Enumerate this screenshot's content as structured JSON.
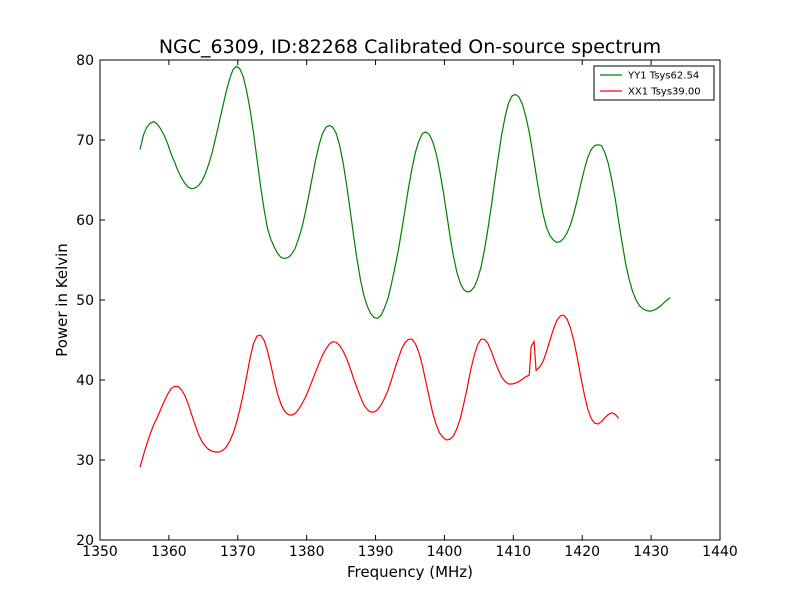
{
  "chart_data": {
    "type": "line",
    "title": "NGC_6309, ID:82268 Calibrated On-source spectrum",
    "xlabel": "Frequency (MHz)",
    "ylabel": "Power in Kelvin",
    "xlim": [
      1350,
      1440
    ],
    "ylim": [
      20,
      80
    ],
    "xticks": [
      1350,
      1360,
      1370,
      1380,
      1390,
      1400,
      1410,
      1420,
      1430,
      1440
    ],
    "yticks": [
      20,
      30,
      40,
      50,
      60,
      70,
      80
    ],
    "grid": false,
    "legend_position": "top-right",
    "series": [
      {
        "name": "YY1 Tsys62.54",
        "color": "#008000",
        "points": [
          [
            1355.8,
            68.8
          ],
          [
            1356.3,
            70.6
          ],
          [
            1356.8,
            71.6
          ],
          [
            1357.3,
            72.1
          ],
          [
            1357.8,
            72.3
          ],
          [
            1358.3,
            72.0
          ],
          [
            1358.8,
            71.4
          ],
          [
            1359.3,
            70.6
          ],
          [
            1359.8,
            69.6
          ],
          [
            1360.3,
            68.3
          ],
          [
            1360.8,
            67.3
          ],
          [
            1361.3,
            66.2
          ],
          [
            1361.8,
            65.3
          ],
          [
            1362.3,
            64.6
          ],
          [
            1362.8,
            64.1
          ],
          [
            1363.3,
            63.9
          ],
          [
            1363.8,
            64.0
          ],
          [
            1364.3,
            64.3
          ],
          [
            1364.8,
            64.9
          ],
          [
            1365.3,
            65.8
          ],
          [
            1365.8,
            67.0
          ],
          [
            1366.3,
            68.5
          ],
          [
            1366.8,
            70.3
          ],
          [
            1367.3,
            72.2
          ],
          [
            1367.8,
            74.1
          ],
          [
            1368.3,
            76.0
          ],
          [
            1368.8,
            77.6
          ],
          [
            1369.3,
            78.8
          ],
          [
            1369.8,
            79.2
          ],
          [
            1370.3,
            78.9
          ],
          [
            1370.8,
            77.9
          ],
          [
            1371.3,
            76.1
          ],
          [
            1371.8,
            73.7
          ],
          [
            1372.3,
            70.8
          ],
          [
            1372.8,
            67.5
          ],
          [
            1373.3,
            64.3
          ],
          [
            1373.8,
            61.4
          ],
          [
            1374.3,
            59.0
          ],
          [
            1374.8,
            57.6
          ],
          [
            1375.3,
            56.6
          ],
          [
            1375.8,
            55.8
          ],
          [
            1376.3,
            55.3
          ],
          [
            1376.8,
            55.2
          ],
          [
            1377.3,
            55.3
          ],
          [
            1377.8,
            55.7
          ],
          [
            1378.3,
            56.4
          ],
          [
            1378.8,
            57.6
          ],
          [
            1379.3,
            59.0
          ],
          [
            1379.8,
            60.9
          ],
          [
            1380.3,
            63.0
          ],
          [
            1380.8,
            65.3
          ],
          [
            1381.3,
            67.5
          ],
          [
            1381.8,
            69.4
          ],
          [
            1382.3,
            70.8
          ],
          [
            1382.8,
            71.6
          ],
          [
            1383.3,
            71.8
          ],
          [
            1383.8,
            71.6
          ],
          [
            1384.3,
            70.8
          ],
          [
            1384.8,
            69.3
          ],
          [
            1385.3,
            67.1
          ],
          [
            1385.8,
            64.4
          ],
          [
            1386.3,
            61.3
          ],
          [
            1386.8,
            58.1
          ],
          [
            1387.3,
            55.1
          ],
          [
            1387.8,
            52.6
          ],
          [
            1388.3,
            50.6
          ],
          [
            1388.8,
            49.2
          ],
          [
            1389.3,
            48.3
          ],
          [
            1389.8,
            47.8
          ],
          [
            1390.3,
            47.7
          ],
          [
            1390.8,
            48.1
          ],
          [
            1391.3,
            49.0
          ],
          [
            1391.8,
            50.2
          ],
          [
            1392.3,
            52.0
          ],
          [
            1392.8,
            54.0
          ],
          [
            1393.3,
            56.2
          ],
          [
            1393.8,
            58.7
          ],
          [
            1394.3,
            61.4
          ],
          [
            1394.8,
            64.1
          ],
          [
            1395.3,
            66.5
          ],
          [
            1395.8,
            68.5
          ],
          [
            1396.3,
            69.9
          ],
          [
            1396.8,
            70.8
          ],
          [
            1397.3,
            71.0
          ],
          [
            1397.8,
            70.7
          ],
          [
            1398.3,
            69.8
          ],
          [
            1398.8,
            68.3
          ],
          [
            1399.3,
            66.2
          ],
          [
            1399.8,
            63.7
          ],
          [
            1400.3,
            60.9
          ],
          [
            1400.8,
            58.0
          ],
          [
            1401.3,
            55.5
          ],
          [
            1401.8,
            53.5
          ],
          [
            1402.3,
            52.1
          ],
          [
            1402.8,
            51.3
          ],
          [
            1403.3,
            51.0
          ],
          [
            1403.8,
            51.1
          ],
          [
            1404.3,
            51.6
          ],
          [
            1404.8,
            52.6
          ],
          [
            1405.3,
            54.1
          ],
          [
            1405.8,
            56.2
          ],
          [
            1406.3,
            58.8
          ],
          [
            1406.8,
            61.7
          ],
          [
            1407.3,
            64.8
          ],
          [
            1407.8,
            67.8
          ],
          [
            1408.3,
            70.6
          ],
          [
            1408.8,
            72.9
          ],
          [
            1409.3,
            74.6
          ],
          [
            1409.8,
            75.5
          ],
          [
            1410.3,
            75.7
          ],
          [
            1410.8,
            75.4
          ],
          [
            1411.3,
            74.5
          ],
          [
            1411.8,
            73.0
          ],
          [
            1412.3,
            71.0
          ],
          [
            1412.8,
            68.5
          ],
          [
            1413.3,
            65.7
          ],
          [
            1413.8,
            63.1
          ],
          [
            1414.3,
            60.8
          ],
          [
            1414.8,
            59.1
          ],
          [
            1415.3,
            58.1
          ],
          [
            1415.8,
            57.5
          ],
          [
            1416.3,
            57.2
          ],
          [
            1416.8,
            57.3
          ],
          [
            1417.3,
            57.7
          ],
          [
            1417.8,
            58.4
          ],
          [
            1418.3,
            59.4
          ],
          [
            1418.8,
            60.9
          ],
          [
            1419.3,
            62.6
          ],
          [
            1419.8,
            64.5
          ],
          [
            1420.3,
            66.3
          ],
          [
            1420.8,
            67.8
          ],
          [
            1421.3,
            68.8
          ],
          [
            1421.8,
            69.3
          ],
          [
            1422.3,
            69.4
          ],
          [
            1422.8,
            69.3
          ],
          [
            1423.3,
            68.4
          ],
          [
            1423.8,
            67.0
          ],
          [
            1424.3,
            65.0
          ],
          [
            1424.8,
            62.6
          ],
          [
            1425.3,
            59.8
          ],
          [
            1425.8,
            57.1
          ],
          [
            1426.3,
            54.6
          ],
          [
            1426.8,
            52.6
          ],
          [
            1427.3,
            51.1
          ],
          [
            1427.8,
            50.0
          ],
          [
            1428.3,
            49.3
          ],
          [
            1428.8,
            48.9
          ],
          [
            1429.3,
            48.7
          ],
          [
            1429.8,
            48.6
          ],
          [
            1430.3,
            48.7
          ],
          [
            1430.8,
            48.9
          ],
          [
            1431.3,
            49.2
          ],
          [
            1431.8,
            49.6
          ],
          [
            1432.3,
            50.0
          ],
          [
            1432.8,
            50.3
          ]
        ]
      },
      {
        "name": "XX1 Tsys39.00",
        "color": "#ff0000",
        "points": [
          [
            1355.8,
            29.1
          ],
          [
            1356.3,
            30.6
          ],
          [
            1356.8,
            32.0
          ],
          [
            1357.3,
            33.3
          ],
          [
            1357.8,
            34.4
          ],
          [
            1358.3,
            35.3
          ],
          [
            1358.8,
            36.3
          ],
          [
            1359.3,
            37.3
          ],
          [
            1359.8,
            38.2
          ],
          [
            1360.3,
            38.9
          ],
          [
            1360.8,
            39.2
          ],
          [
            1361.3,
            39.2
          ],
          [
            1361.8,
            38.8
          ],
          [
            1362.3,
            38.1
          ],
          [
            1362.8,
            37.0
          ],
          [
            1363.3,
            35.7
          ],
          [
            1363.8,
            34.4
          ],
          [
            1364.3,
            33.2
          ],
          [
            1364.8,
            32.3
          ],
          [
            1365.3,
            31.7
          ],
          [
            1365.8,
            31.3
          ],
          [
            1366.3,
            31.1
          ],
          [
            1366.8,
            31.0
          ],
          [
            1367.3,
            31.0
          ],
          [
            1367.8,
            31.2
          ],
          [
            1368.3,
            31.6
          ],
          [
            1368.8,
            32.3
          ],
          [
            1369.3,
            33.3
          ],
          [
            1369.8,
            34.6
          ],
          [
            1370.3,
            36.3
          ],
          [
            1370.8,
            38.3
          ],
          [
            1371.3,
            40.5
          ],
          [
            1371.8,
            42.8
          ],
          [
            1372.3,
            44.6
          ],
          [
            1372.8,
            45.5
          ],
          [
            1373.3,
            45.6
          ],
          [
            1373.8,
            45.0
          ],
          [
            1374.3,
            43.7
          ],
          [
            1374.8,
            41.9
          ],
          [
            1375.3,
            39.9
          ],
          [
            1375.8,
            38.2
          ],
          [
            1376.3,
            36.9
          ],
          [
            1376.8,
            36.1
          ],
          [
            1377.3,
            35.7
          ],
          [
            1377.8,
            35.6
          ],
          [
            1378.3,
            35.8
          ],
          [
            1378.8,
            36.3
          ],
          [
            1379.3,
            37.0
          ],
          [
            1379.8,
            37.8
          ],
          [
            1380.3,
            38.8
          ],
          [
            1380.8,
            39.9
          ],
          [
            1381.3,
            41.0
          ],
          [
            1381.8,
            42.1
          ],
          [
            1382.3,
            43.1
          ],
          [
            1382.8,
            43.9
          ],
          [
            1383.3,
            44.5
          ],
          [
            1383.8,
            44.8
          ],
          [
            1384.3,
            44.7
          ],
          [
            1384.8,
            44.3
          ],
          [
            1385.3,
            43.6
          ],
          [
            1385.8,
            42.7
          ],
          [
            1386.3,
            41.5
          ],
          [
            1386.8,
            40.2
          ],
          [
            1387.3,
            39.0
          ],
          [
            1387.8,
            37.9
          ],
          [
            1388.3,
            36.9
          ],
          [
            1388.8,
            36.3
          ],
          [
            1389.3,
            36.0
          ],
          [
            1389.8,
            36.0
          ],
          [
            1390.3,
            36.3
          ],
          [
            1390.8,
            36.9
          ],
          [
            1391.3,
            37.7
          ],
          [
            1391.8,
            38.7
          ],
          [
            1392.3,
            40.0
          ],
          [
            1392.8,
            41.4
          ],
          [
            1393.3,
            42.7
          ],
          [
            1393.8,
            43.9
          ],
          [
            1394.3,
            44.7
          ],
          [
            1394.8,
            45.1
          ],
          [
            1395.3,
            45.1
          ],
          [
            1395.8,
            44.5
          ],
          [
            1396.3,
            43.4
          ],
          [
            1396.8,
            41.8
          ],
          [
            1397.3,
            39.8
          ],
          [
            1397.8,
            37.8
          ],
          [
            1398.3,
            35.9
          ],
          [
            1398.8,
            34.4
          ],
          [
            1399.3,
            33.4
          ],
          [
            1399.8,
            32.8
          ],
          [
            1400.3,
            32.5
          ],
          [
            1400.8,
            32.6
          ],
          [
            1401.3,
            33.0
          ],
          [
            1401.8,
            33.9
          ],
          [
            1402.3,
            35.2
          ],
          [
            1402.8,
            37.0
          ],
          [
            1403.3,
            39.0
          ],
          [
            1403.8,
            41.2
          ],
          [
            1404.3,
            43.0
          ],
          [
            1404.8,
            44.4
          ],
          [
            1405.3,
            45.1
          ],
          [
            1405.8,
            45.1
          ],
          [
            1406.3,
            44.6
          ],
          [
            1406.8,
            43.6
          ],
          [
            1407.3,
            42.4
          ],
          [
            1407.8,
            41.3
          ],
          [
            1408.3,
            40.4
          ],
          [
            1408.8,
            39.8
          ],
          [
            1409.3,
            39.5
          ],
          [
            1409.8,
            39.5
          ],
          [
            1410.3,
            39.6
          ],
          [
            1410.8,
            39.8
          ],
          [
            1411.3,
            40.1
          ],
          [
            1411.8,
            40.4
          ],
          [
            1412.3,
            40.6
          ],
          [
            1412.6,
            44.2
          ],
          [
            1413.0,
            44.8
          ],
          [
            1413.3,
            41.2
          ],
          [
            1413.8,
            41.6
          ],
          [
            1414.3,
            42.3
          ],
          [
            1414.8,
            43.5
          ],
          [
            1415.3,
            44.9
          ],
          [
            1415.8,
            46.3
          ],
          [
            1416.3,
            47.4
          ],
          [
            1416.8,
            48.0
          ],
          [
            1417.3,
            48.1
          ],
          [
            1417.8,
            47.6
          ],
          [
            1418.3,
            46.5
          ],
          [
            1418.8,
            44.8
          ],
          [
            1419.3,
            42.7
          ],
          [
            1419.8,
            40.4
          ],
          [
            1420.3,
            38.2
          ],
          [
            1420.8,
            36.4
          ],
          [
            1421.3,
            35.2
          ],
          [
            1421.8,
            34.6
          ],
          [
            1422.3,
            34.5
          ],
          [
            1422.8,
            34.8
          ],
          [
            1423.3,
            35.3
          ],
          [
            1423.8,
            35.7
          ],
          [
            1424.3,
            35.9
          ],
          [
            1424.8,
            35.7
          ],
          [
            1425.3,
            35.2
          ]
        ]
      }
    ]
  }
}
